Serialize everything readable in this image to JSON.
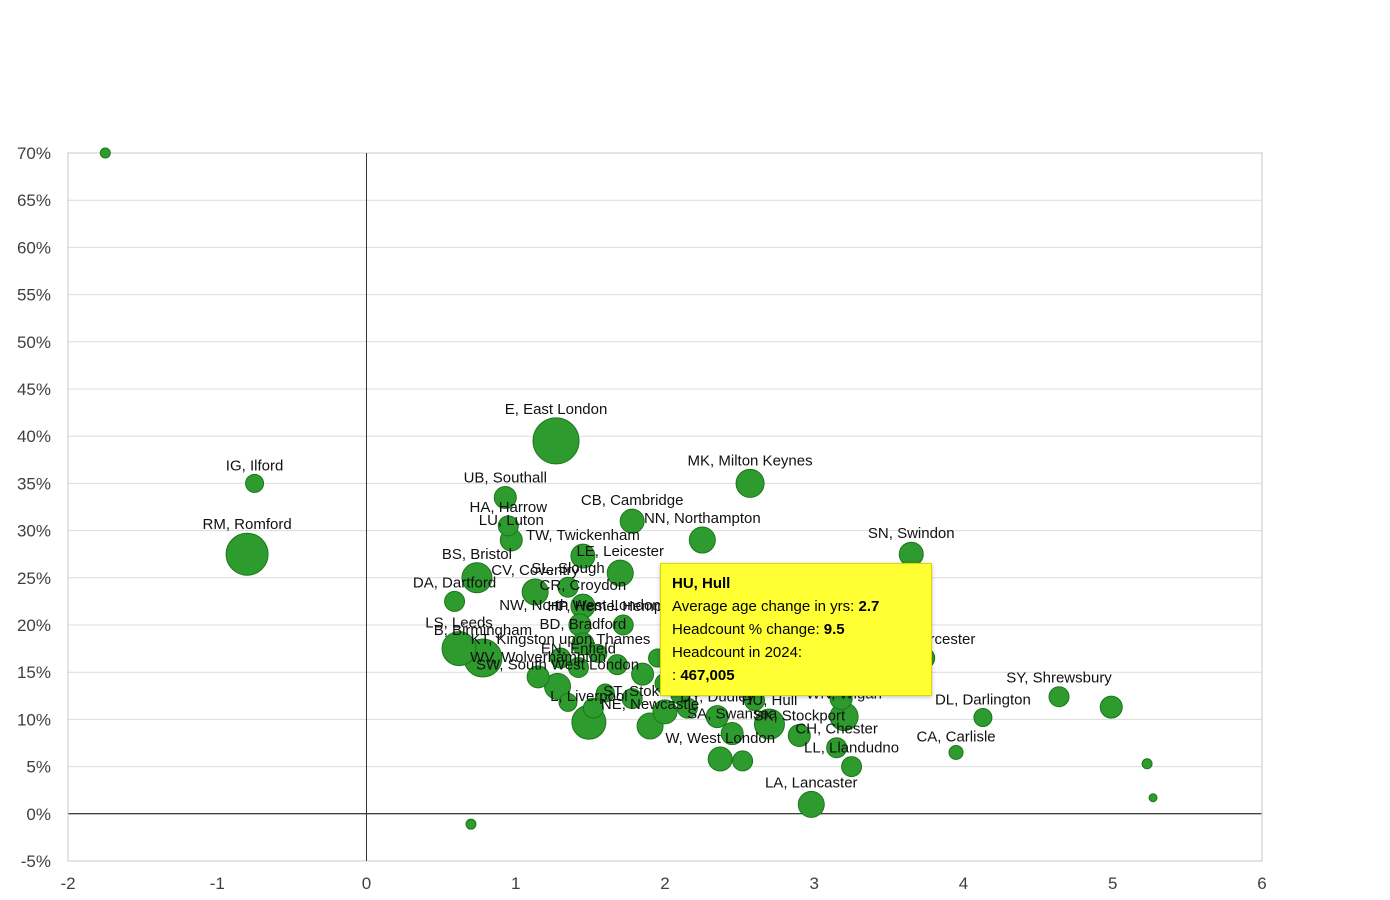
{
  "chart_data": {
    "type": "scatter",
    "title": "",
    "xlabel": "",
    "ylabel": "",
    "xlim": [
      -2,
      6
    ],
    "ylim": [
      -5,
      70
    ],
    "x_ticks": [
      -2,
      -1,
      0,
      1,
      2,
      3,
      4,
      5,
      6
    ],
    "y_ticks": [
      70,
      65,
      60,
      55,
      50,
      45,
      40,
      35,
      30,
      25,
      20,
      15,
      10,
      5,
      0,
      -5
    ],
    "y_tick_suffix": "%",
    "grid": "horizontal",
    "legend": "none",
    "marker_color": "#2e9b2e",
    "marker_stroke": "#1b771b",
    "points": [
      {
        "label": "",
        "x": -1.75,
        "y": 70,
        "r": 5
      },
      {
        "label": "IG, Ilford",
        "x": -0.75,
        "y": 35,
        "r": 9
      },
      {
        "label": "RM, Romford",
        "x": -0.8,
        "y": 27.5,
        "r": 21
      },
      {
        "label": "E, East London",
        "x": 1.27,
        "y": 39.5,
        "r": 23
      },
      {
        "label": "UB, Southall",
        "x": 0.93,
        "y": 33.5,
        "r": 11
      },
      {
        "label": "MK, Milton Keynes",
        "x": 2.57,
        "y": 35,
        "r": 14
      },
      {
        "label": "HA, Harrow",
        "x": 0.95,
        "y": 30.5,
        "r": 10
      },
      {
        "label": "CB, Cambridge",
        "x": 1.78,
        "y": 31,
        "r": 12
      },
      {
        "label": "LU, Luton",
        "x": 0.97,
        "y": 29,
        "r": 11
      },
      {
        "label": "NN, Northampton",
        "x": 2.25,
        "y": 29,
        "r": 13
      },
      {
        "label": "TW, Twickenham",
        "x": 1.45,
        "y": 27.3,
        "r": 12
      },
      {
        "label": "SN, Swindon",
        "x": 3.65,
        "y": 27.5,
        "r": 12
      },
      {
        "label": "LE, Leicester",
        "x": 1.7,
        "y": 25.5,
        "r": 13
      },
      {
        "label": "BS, Bristol",
        "x": 0.74,
        "y": 25,
        "r": 15
      },
      {
        "label": "CV, Coventry",
        "x": 1.13,
        "y": 23.5,
        "r": 13
      },
      {
        "label": "SL, Slough",
        "x": 1.35,
        "y": 24,
        "r": 10
      },
      {
        "label": "DA, Dartford",
        "x": 0.59,
        "y": 22.5,
        "r": 10
      },
      {
        "label": "CR, Croydon",
        "x": 1.45,
        "y": 22,
        "r": 12
      },
      {
        "label": "NW, North West London",
        "x": 1.43,
        "y": 20,
        "r": 11
      },
      {
        "label": "HP, Hemel Hempstead",
        "x": 1.72,
        "y": 20,
        "r": 10
      },
      {
        "label": "BD, Bradford",
        "x": 1.45,
        "y": 18,
        "r": 11
      },
      {
        "label": "LS, Leeds",
        "x": 0.62,
        "y": 17.5,
        "r": 17
      },
      {
        "label": "B, Birmingham",
        "x": 0.78,
        "y": 16.5,
        "r": 19
      },
      {
        "label": "KT, Kingston upon Thames",
        "x": 1.3,
        "y": 16.5,
        "r": 10
      },
      {
        "label": "EN, Enfield",
        "x": 1.42,
        "y": 15.5,
        "r": 10
      },
      {
        "label": "WV, Wolverhampton",
        "x": 1.15,
        "y": 14.5,
        "r": 11
      },
      {
        "label": "SW, South West London",
        "x": 1.28,
        "y": 13.5,
        "r": 13
      },
      {
        "label": "WR, Worcester",
        "x": 3.74,
        "y": 16.5,
        "r": 10
      },
      {
        "label": "",
        "x": 3.67,
        "y": 19,
        "r": 11
      },
      {
        "label": "",
        "x": 3.55,
        "y": 17.5,
        "r": 8
      },
      {
        "label": "PL, Plymouth",
        "x": 3.18,
        "y": 12.2,
        "r": 11
      },
      {
        "label": "",
        "x": 2.6,
        "y": 12,
        "r": 10
      },
      {
        "label": "SY, Shrewsbury",
        "x": 4.64,
        "y": 12.4,
        "r": 10
      },
      {
        "label": "",
        "x": 4.99,
        "y": 11.3,
        "r": 11
      },
      {
        "label": "HU, Hull",
        "x": 2.7,
        "y": 9.5,
        "r": 15
      },
      {
        "label": "WN, Wigan",
        "x": 3.2,
        "y": 10.3,
        "r": 14
      },
      {
        "label": "DL, Darlington",
        "x": 4.13,
        "y": 10.2,
        "r": 9
      },
      {
        "label": "CA, Carlisle",
        "x": 3.95,
        "y": 6.5,
        "r": 7
      },
      {
        "label": "L, Liverpool",
        "x": 1.49,
        "y": 9.7,
        "r": 17
      },
      {
        "label": "NE, Newcastle",
        "x": 1.9,
        "y": 9.3,
        "r": 13
      },
      {
        "label": "ST, Stoke on Trent",
        "x": 2.0,
        "y": 10.8,
        "r": 12
      },
      {
        "label": "DY, Dudley",
        "x": 2.35,
        "y": 10.3,
        "r": 11
      },
      {
        "label": "SA, Swansea",
        "x": 2.45,
        "y": 8.5,
        "r": 11
      },
      {
        "label": "SK, Stockport",
        "x": 2.9,
        "y": 8.3,
        "r": 11
      },
      {
        "label": "CH, Chester",
        "x": 3.15,
        "y": 7,
        "r": 10
      },
      {
        "label": "W, West London",
        "x": 2.37,
        "y": 5.8,
        "r": 12
      },
      {
        "label": "",
        "x": 2.52,
        "y": 5.6,
        "r": 10
      },
      {
        "label": "LL, Llandudno",
        "x": 3.25,
        "y": 5,
        "r": 10
      },
      {
        "label": "LA, Lancaster",
        "x": 2.98,
        "y": 1,
        "r": 13
      },
      {
        "label": "",
        "x": 0.7,
        "y": -1.1,
        "r": 5
      },
      {
        "label": "",
        "x": 5.23,
        "y": 5.3,
        "r": 5
      },
      {
        "label": "",
        "x": 5.27,
        "y": 1.7,
        "r": 4
      },
      {
        "label": "",
        "x": 1.55,
        "y": 17,
        "r": 9
      },
      {
        "label": "",
        "x": 1.68,
        "y": 15.8,
        "r": 10
      },
      {
        "label": "",
        "x": 1.85,
        "y": 14.8,
        "r": 11
      },
      {
        "label": "",
        "x": 2.0,
        "y": 13.8,
        "r": 10
      },
      {
        "label": "",
        "x": 1.6,
        "y": 12.8,
        "r": 9
      },
      {
        "label": "",
        "x": 1.78,
        "y": 12.2,
        "r": 10
      },
      {
        "label": "",
        "x": 2.1,
        "y": 12.6,
        "r": 9
      },
      {
        "label": "",
        "x": 1.95,
        "y": 16.5,
        "r": 9
      },
      {
        "label": "",
        "x": 2.2,
        "y": 15.5,
        "r": 9
      },
      {
        "label": "",
        "x": 1.35,
        "y": 11.8,
        "r": 9
      },
      {
        "label": "",
        "x": 1.52,
        "y": 11.2,
        "r": 10
      },
      {
        "label": "",
        "x": 2.15,
        "y": 11.2,
        "r": 10
      }
    ]
  },
  "tooltip": {
    "title": "HU, Hull",
    "age_label": "Average age change in yrs:",
    "age_value": "2.7",
    "pct_label": "Headcount % change:",
    "pct_value": "9.5",
    "headcount_label": "Headcount in 2024:",
    "headcount_prefix": ":",
    "headcount_value": "467,005"
  },
  "colors": {
    "gridline": "#dcdcdc",
    "plot_border": "#c8c8c8",
    "zero_line_x": "#333333",
    "zero_line_y": "#000000",
    "tooltip_bg": "#ffff33"
  }
}
